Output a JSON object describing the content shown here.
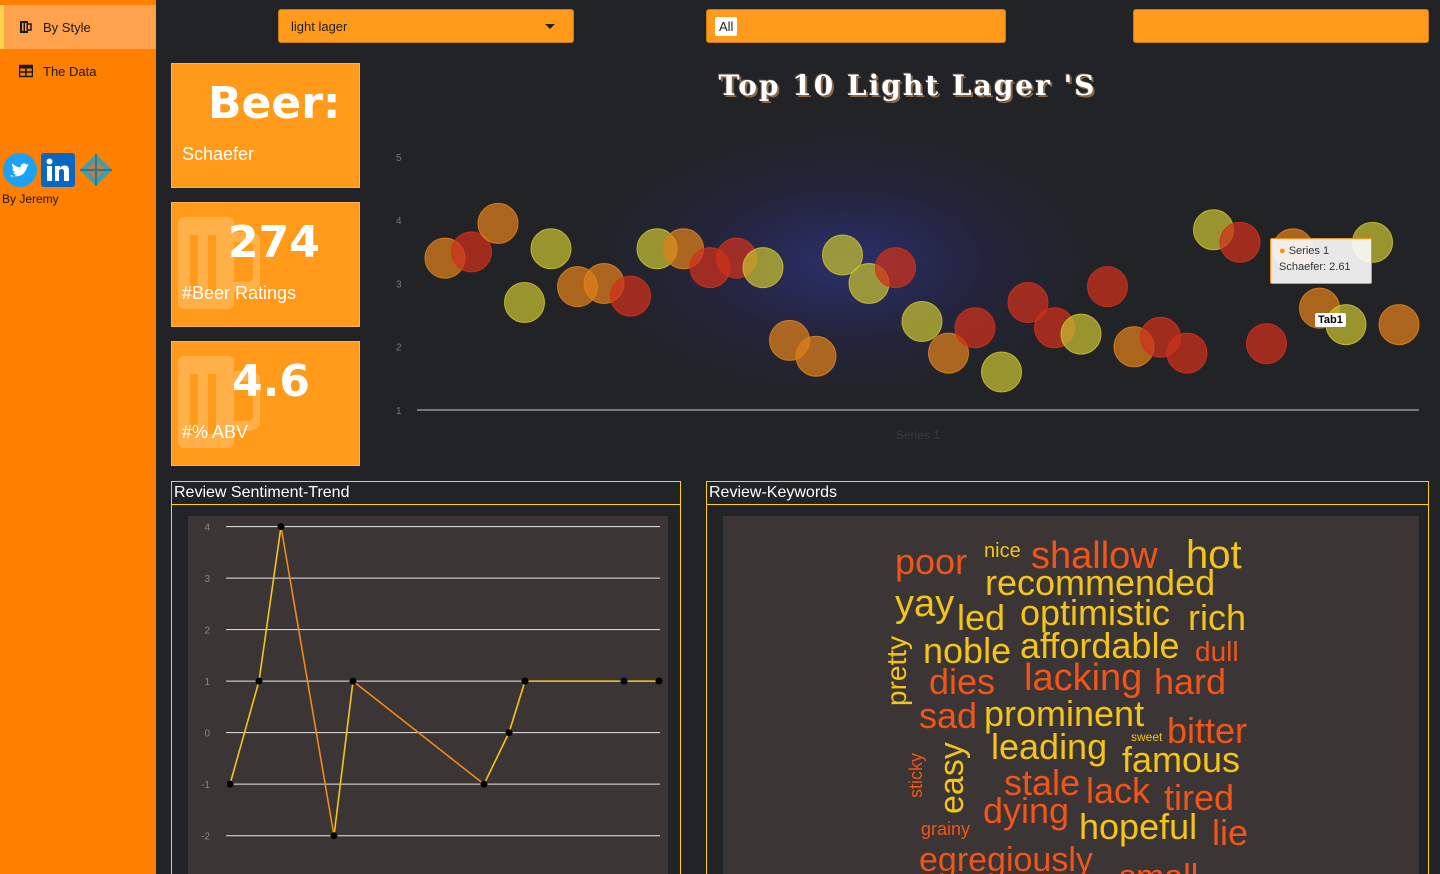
{
  "sidebar": {
    "items": [
      {
        "label": "By Style",
        "icon": "beer-mug-icon",
        "active": true
      },
      {
        "label": "The Data",
        "icon": "table-icon",
        "active": false
      }
    ],
    "social": [
      "twitter-icon",
      "linkedin-icon",
      "kaggle-icon"
    ],
    "byline": "By Jeremy"
  },
  "filters": {
    "style": "light lager",
    "chip": "All",
    "third": ""
  },
  "value_boxes": [
    {
      "value": "Beer:",
      "label": "Schaefer"
    },
    {
      "value": "274",
      "label": "#Beer Ratings"
    },
    {
      "value": "4.6",
      "label": "#% ABV"
    }
  ],
  "bubble_chart": {
    "title": "Top 10 Light Lager 'S",
    "xlabel": "Series 1",
    "tooltip": {
      "series": "Series 1",
      "text": "Schaefer: 2.61"
    },
    "badge": "Tab1",
    "colors": {
      "yellow": "#c8c030",
      "orange": "#e0801a",
      "red": "#d0301a",
      "orange2": "#e8781a"
    }
  },
  "chart_data": [
    {
      "type": "scatter",
      "title": "Top 10 Light Lager 'S",
      "xlabel": "Series 1",
      "ylabel": "",
      "ylim": [
        1,
        5.3
      ],
      "yticks": [
        1,
        2,
        3,
        4,
        5
      ],
      "series": [
        {
          "points": [
            {
              "x": 1,
              "y": 3.4,
              "c": "o"
            },
            {
              "x": 2,
              "y": 3.5,
              "c": "r"
            },
            {
              "x": 3,
              "y": 3.95,
              "c": "o"
            },
            {
              "x": 4,
              "y": 2.7,
              "c": "y"
            },
            {
              "x": 5,
              "y": 3.55,
              "c": "y"
            },
            {
              "x": 6,
              "y": 2.95,
              "c": "o"
            },
            {
              "x": 7,
              "y": 3.0,
              "c": "o"
            },
            {
              "x": 8,
              "y": 2.8,
              "c": "r"
            },
            {
              "x": 9,
              "y": 3.55,
              "c": "y"
            },
            {
              "x": 10,
              "y": 3.55,
              "c": "o"
            },
            {
              "x": 11,
              "y": 3.25,
              "c": "r"
            },
            {
              "x": 12,
              "y": 3.4,
              "c": "r"
            },
            {
              "x": 13,
              "y": 3.25,
              "c": "y"
            },
            {
              "x": 14,
              "y": 2.1,
              "c": "o"
            },
            {
              "x": 15,
              "y": 1.85,
              "c": "o"
            },
            {
              "x": 16,
              "y": 3.45,
              "c": "y"
            },
            {
              "x": 17,
              "y": 3.0,
              "c": "y"
            },
            {
              "x": 18,
              "y": 3.25,
              "c": "r"
            },
            {
              "x": 19,
              "y": 2.4,
              "c": "y"
            },
            {
              "x": 20,
              "y": 1.9,
              "c": "o"
            },
            {
              "x": 21,
              "y": 2.3,
              "c": "r"
            },
            {
              "x": 22,
              "y": 1.6,
              "c": "y"
            },
            {
              "x": 23,
              "y": 2.7,
              "c": "r"
            },
            {
              "x": 24,
              "y": 2.3,
              "c": "r"
            },
            {
              "x": 25,
              "y": 2.2,
              "c": "y"
            },
            {
              "x": 26,
              "y": 2.95,
              "c": "r"
            },
            {
              "x": 27,
              "y": 2.0,
              "c": "o"
            },
            {
              "x": 28,
              "y": 2.15,
              "c": "r"
            },
            {
              "x": 29,
              "y": 1.9,
              "c": "r"
            },
            {
              "x": 30,
              "y": 3.85,
              "c": "y"
            },
            {
              "x": 31,
              "y": 3.65,
              "c": "r"
            },
            {
              "x": 32,
              "y": 2.05,
              "c": "r"
            },
            {
              "x": 33,
              "y": 3.55,
              "c": "o"
            },
            {
              "x": 34,
              "y": 2.61,
              "c": "o"
            },
            {
              "x": 35,
              "y": 2.35,
              "c": "y"
            },
            {
              "x": 36,
              "y": 3.65,
              "c": "y"
            },
            {
              "x": 37,
              "y": 2.35,
              "c": "o"
            }
          ]
        }
      ]
    },
    {
      "type": "line",
      "title": "Review Sentiment-Trend",
      "ylim": [
        -2.2,
        4.05
      ],
      "yticks": [
        4,
        3,
        2,
        1,
        0,
        -1,
        -2
      ],
      "x": [
        1,
        2,
        3,
        4,
        5,
        6,
        7,
        8,
        9,
        10
      ],
      "values": [
        -1,
        1,
        4,
        -2,
        1,
        -1,
        0,
        1,
        1,
        1
      ]
    }
  ],
  "sentiment": {
    "title": "Review Sentiment-Trend"
  },
  "keywords": {
    "title": "Review-Keywords",
    "words": [
      {
        "t": "poor",
        "c": "#f0551a",
        "s": 36,
        "v": false
      },
      {
        "t": "nice",
        "c": "#f3c41a",
        "s": 20,
        "v": false
      },
      {
        "t": "shallow",
        "c": "#f0551a",
        "s": 38,
        "v": false
      },
      {
        "t": "hot",
        "c": "#f3c41a",
        "s": 40,
        "v": false
      },
      {
        "t": "recommended",
        "c": "#f3c41a",
        "s": 36,
        "v": false
      },
      {
        "t": "yay",
        "c": "#f3c41a",
        "s": 38,
        "v": false
      },
      {
        "t": "led",
        "c": "#f3c41a",
        "s": 36,
        "v": false
      },
      {
        "t": "optimistic",
        "c": "#f3c41a",
        "s": 36,
        "v": false
      },
      {
        "t": "rich",
        "c": "#f3c41a",
        "s": 36,
        "v": false
      },
      {
        "t": "pretty",
        "c": "#f3c41a",
        "s": 28,
        "v": true
      },
      {
        "t": "noble",
        "c": "#f3c41a",
        "s": 36,
        "v": false
      },
      {
        "t": "affordable",
        "c": "#f3c41a",
        "s": 36,
        "v": false
      },
      {
        "t": "dull",
        "c": "#f0551a",
        "s": 28,
        "v": false
      },
      {
        "t": "dies",
        "c": "#f0551a",
        "s": 36,
        "v": false
      },
      {
        "t": "lacking",
        "c": "#f0551a",
        "s": 38,
        "v": false
      },
      {
        "t": "hard",
        "c": "#f0551a",
        "s": 36,
        "v": false
      },
      {
        "t": "sad",
        "c": "#f0551a",
        "s": 36,
        "v": false
      },
      {
        "t": "prominent",
        "c": "#f3c41a",
        "s": 36,
        "v": false
      },
      {
        "t": "bitter",
        "c": "#f0551a",
        "s": 36,
        "v": false
      },
      {
        "t": "sweet",
        "c": "#f3c41a",
        "s": 12,
        "v": false
      },
      {
        "t": "leading",
        "c": "#f3c41a",
        "s": 36,
        "v": false
      },
      {
        "t": "famous",
        "c": "#f3c41a",
        "s": 36,
        "v": false
      },
      {
        "t": "easy",
        "c": "#f3c41a",
        "s": 34,
        "v": true
      },
      {
        "t": "sticky",
        "c": "#f0551a",
        "s": 18,
        "v": true
      },
      {
        "t": "stale",
        "c": "#f0551a",
        "s": 36,
        "v": false
      },
      {
        "t": "lack",
        "c": "#f0551a",
        "s": 36,
        "v": false
      },
      {
        "t": "tired",
        "c": "#f0551a",
        "s": 36,
        "v": false
      },
      {
        "t": "dying",
        "c": "#f0551a",
        "s": 36,
        "v": false
      },
      {
        "t": "hopeful",
        "c": "#f3c41a",
        "s": 36,
        "v": false
      },
      {
        "t": "lie",
        "c": "#f0551a",
        "s": 36,
        "v": false
      },
      {
        "t": "grainy",
        "c": "#f0551a",
        "s": 18,
        "v": false
      },
      {
        "t": "egregiously",
        "c": "#f0551a",
        "s": 34,
        "v": false
      },
      {
        "t": "small",
        "c": "#f0551a",
        "s": 34,
        "v": false
      }
    ]
  }
}
